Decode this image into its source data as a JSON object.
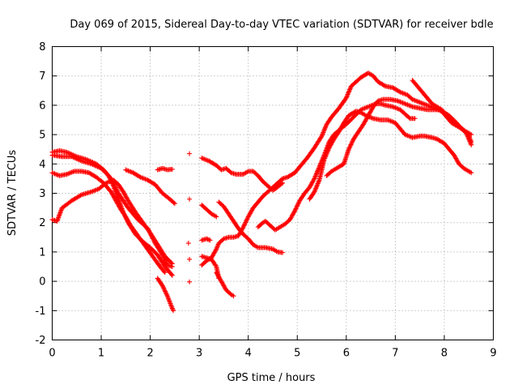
{
  "chart_data": {
    "type": "scatter",
    "title": "Day 069 of 2015, Sidereal Day-to-day VTEC variation (SDTVAR) for receiver bdle",
    "xlabel": "GPS time / hours",
    "ylabel": "SDTVAR / TECUs",
    "xlim": [
      0,
      9
    ],
    "ylim": [
      -2,
      8
    ],
    "xticks": [
      "0",
      "1",
      "2",
      "3",
      "4",
      "5",
      "6",
      "7",
      "8",
      "9"
    ],
    "yticks": [
      "-2",
      "-1",
      "0",
      "1",
      "2",
      "3",
      "4",
      "5",
      "6",
      "7",
      "8"
    ],
    "grid": true,
    "marker": "+",
    "color": "#ff0000",
    "tracks": [
      {
        "points": [
          [
            0.0,
            4.4
          ],
          [
            0.15,
            4.45
          ],
          [
            0.3,
            4.4
          ],
          [
            0.5,
            4.25
          ],
          [
            0.7,
            4.15
          ],
          [
            0.9,
            4.0
          ],
          [
            1.05,
            3.8
          ],
          [
            1.2,
            3.5
          ],
          [
            1.35,
            3.0
          ],
          [
            1.55,
            2.5
          ],
          [
            1.75,
            2.1
          ],
          [
            1.95,
            1.8
          ],
          [
            2.1,
            1.3
          ],
          [
            2.25,
            0.9
          ],
          [
            2.35,
            0.55
          ],
          [
            2.45,
            0.5
          ]
        ]
      },
      {
        "points": [
          [
            0.0,
            4.3
          ],
          [
            0.2,
            4.25
          ],
          [
            0.4,
            4.25
          ],
          [
            0.6,
            4.1
          ],
          [
            0.8,
            4.0
          ],
          [
            1.0,
            3.85
          ],
          [
            1.15,
            3.6
          ],
          [
            1.25,
            3.25
          ],
          [
            1.35,
            2.8
          ],
          [
            1.45,
            2.35
          ],
          [
            1.55,
            2.0
          ],
          [
            1.7,
            1.6
          ],
          [
            1.85,
            1.35
          ],
          [
            2.0,
            1.15
          ],
          [
            2.15,
            0.9
          ],
          [
            2.3,
            0.5
          ],
          [
            2.45,
            0.2
          ]
        ]
      },
      {
        "points": [
          [
            0.0,
            2.1
          ],
          [
            0.1,
            2.05
          ],
          [
            0.2,
            2.5
          ],
          [
            0.4,
            2.75
          ],
          [
            0.6,
            2.95
          ],
          [
            0.8,
            3.05
          ],
          [
            0.95,
            3.15
          ],
          [
            1.1,
            3.35
          ],
          [
            1.25,
            3.45
          ],
          [
            1.35,
            3.3
          ],
          [
            1.45,
            3.05
          ],
          [
            1.55,
            2.75
          ],
          [
            1.7,
            2.35
          ],
          [
            1.85,
            2.0
          ],
          [
            2.0,
            1.65
          ],
          [
            2.15,
            1.25
          ],
          [
            2.3,
            0.85
          ],
          [
            2.45,
            0.6
          ]
        ]
      },
      {
        "points": [
          [
            0.0,
            3.7
          ],
          [
            0.15,
            3.6
          ],
          [
            0.3,
            3.65
          ],
          [
            0.45,
            3.75
          ],
          [
            0.6,
            3.75
          ],
          [
            0.75,
            3.7
          ],
          [
            0.9,
            3.55
          ],
          [
            1.05,
            3.35
          ],
          [
            1.2,
            3.05
          ],
          [
            1.3,
            2.75
          ],
          [
            1.4,
            2.45
          ],
          [
            1.5,
            2.2
          ],
          [
            1.6,
            1.9
          ],
          [
            1.75,
            1.55
          ],
          [
            1.9,
            1.2
          ],
          [
            2.05,
            0.85
          ],
          [
            2.2,
            0.5
          ],
          [
            2.3,
            0.3
          ]
        ]
      },
      {
        "points": [
          [
            1.5,
            3.8
          ],
          [
            1.65,
            3.7
          ],
          [
            1.8,
            3.55
          ],
          [
            1.95,
            3.45
          ],
          [
            2.1,
            3.3
          ],
          [
            2.25,
            3.0
          ],
          [
            2.4,
            2.8
          ],
          [
            2.5,
            2.65
          ]
        ]
      },
      {
        "points": [
          [
            2.15,
            3.8
          ],
          [
            2.25,
            3.85
          ],
          [
            2.35,
            3.8
          ],
          [
            2.45,
            3.82
          ]
        ]
      },
      {
        "points": [
          [
            2.15,
            0.1
          ],
          [
            2.25,
            -0.15
          ],
          [
            2.35,
            -0.5
          ],
          [
            2.42,
            -0.8
          ],
          [
            2.47,
            -1.0
          ]
        ]
      },
      {
        "points": [
          [
            2.8,
            4.35
          ]
        ]
      },
      {
        "points": [
          [
            2.8,
            2.8
          ]
        ]
      },
      {
        "points": [
          [
            2.78,
            1.3
          ]
        ]
      },
      {
        "points": [
          [
            2.8,
            0.75
          ]
        ]
      },
      {
        "points": [
          [
            2.8,
            -0.02
          ]
        ]
      },
      {
        "points": [
          [
            3.05,
            4.2
          ],
          [
            3.2,
            4.1
          ],
          [
            3.35,
            3.95
          ],
          [
            3.45,
            3.8
          ],
          [
            3.55,
            3.85
          ],
          [
            3.65,
            3.7
          ],
          [
            3.75,
            3.65
          ],
          [
            3.9,
            3.65
          ],
          [
            4.0,
            3.75
          ],
          [
            4.1,
            3.75
          ],
          [
            4.2,
            3.6
          ],
          [
            4.3,
            3.4
          ],
          [
            4.4,
            3.25
          ],
          [
            4.5,
            3.1
          ],
          [
            4.55,
            3.15
          ],
          [
            4.7,
            3.35
          ]
        ]
      },
      {
        "points": [
          [
            3.05,
            2.6
          ],
          [
            3.15,
            2.45
          ],
          [
            3.25,
            2.3
          ],
          [
            3.35,
            2.2
          ]
        ]
      },
      {
        "points": [
          [
            3.05,
            1.4
          ],
          [
            3.15,
            1.45
          ],
          [
            3.22,
            1.4
          ]
        ]
      },
      {
        "points": [
          [
            3.05,
            0.85
          ],
          [
            3.15,
            0.8
          ],
          [
            3.25,
            0.75
          ],
          [
            3.35,
            0.5
          ],
          [
            3.4,
            0.1
          ]
        ]
      },
      {
        "points": [
          [
            3.05,
            0.55
          ],
          [
            3.15,
            0.7
          ],
          [
            3.25,
            0.8
          ],
          [
            3.35,
            1.1
          ],
          [
            3.4,
            1.3
          ],
          [
            3.5,
            1.45
          ],
          [
            3.6,
            1.5
          ],
          [
            3.7,
            1.5
          ],
          [
            3.8,
            1.55
          ],
          [
            3.9,
            1.85
          ],
          [
            4.0,
            2.2
          ],
          [
            4.1,
            2.5
          ],
          [
            4.2,
            2.7
          ],
          [
            4.3,
            2.9
          ],
          [
            4.4,
            3.05
          ],
          [
            4.5,
            3.2
          ],
          [
            4.6,
            3.35
          ],
          [
            4.7,
            3.5
          ],
          [
            4.8,
            3.55
          ],
          [
            4.95,
            3.7
          ],
          [
            5.05,
            3.9
          ],
          [
            5.2,
            4.2
          ],
          [
            5.35,
            4.55
          ],
          [
            5.5,
            4.95
          ],
          [
            5.6,
            5.35
          ],
          [
            5.7,
            5.6
          ],
          [
            5.85,
            5.9
          ],
          [
            6.0,
            6.25
          ],
          [
            6.1,
            6.65
          ],
          [
            6.2,
            6.8
          ],
          [
            6.3,
            6.95
          ],
          [
            6.45,
            7.1
          ],
          [
            6.55,
            7.0
          ],
          [
            6.65,
            6.8
          ],
          [
            6.8,
            6.65
          ],
          [
            6.95,
            6.6
          ],
          [
            7.1,
            6.45
          ],
          [
            7.25,
            6.35
          ],
          [
            7.35,
            6.2
          ],
          [
            7.5,
            6.1
          ],
          [
            7.65,
            6.0
          ],
          [
            7.8,
            5.9
          ],
          [
            7.95,
            5.8
          ],
          [
            8.1,
            5.65
          ],
          [
            8.25,
            5.4
          ],
          [
            8.35,
            5.2
          ],
          [
            8.45,
            5.1
          ],
          [
            8.55,
            5.0
          ]
        ]
      },
      {
        "points": [
          [
            3.4,
            2.7
          ],
          [
            3.5,
            2.55
          ],
          [
            3.6,
            2.3
          ],
          [
            3.7,
            2.05
          ],
          [
            3.8,
            1.8
          ],
          [
            3.9,
            1.6
          ],
          [
            4.0,
            1.45
          ],
          [
            4.1,
            1.25
          ],
          [
            4.2,
            1.15
          ],
          [
            4.35,
            1.15
          ],
          [
            4.5,
            1.1
          ],
          [
            4.6,
            1.0
          ],
          [
            4.7,
            0.98
          ]
        ]
      },
      {
        "points": [
          [
            3.35,
            0.3
          ],
          [
            3.45,
            0.0
          ],
          [
            3.55,
            -0.3
          ],
          [
            3.65,
            -0.45
          ],
          [
            3.7,
            -0.5
          ]
        ]
      },
      {
        "points": [
          [
            4.2,
            1.85
          ],
          [
            4.3,
            2.0
          ],
          [
            4.35,
            2.05
          ],
          [
            4.45,
            1.9
          ],
          [
            4.55,
            1.75
          ],
          [
            4.65,
            1.85
          ],
          [
            4.75,
            1.95
          ],
          [
            4.85,
            2.1
          ],
          [
            4.95,
            2.4
          ],
          [
            5.05,
            2.75
          ],
          [
            5.15,
            3.0
          ],
          [
            5.25,
            3.2
          ],
          [
            5.35,
            3.5
          ],
          [
            5.45,
            3.9
          ],
          [
            5.55,
            4.3
          ],
          [
            5.65,
            4.75
          ],
          [
            5.75,
            5.0
          ],
          [
            5.85,
            5.15
          ],
          [
            6.0,
            5.35
          ],
          [
            6.15,
            5.6
          ],
          [
            6.3,
            5.85
          ],
          [
            6.45,
            5.95
          ],
          [
            6.6,
            6.05
          ],
          [
            6.7,
            6.05
          ],
          [
            6.8,
            6.0
          ],
          [
            6.95,
            5.95
          ],
          [
            7.1,
            5.85
          ],
          [
            7.2,
            5.7
          ],
          [
            7.3,
            5.55
          ],
          [
            7.4,
            5.55
          ]
        ]
      },
      {
        "points": [
          [
            5.25,
            2.8
          ],
          [
            5.35,
            3.05
          ],
          [
            5.45,
            3.45
          ],
          [
            5.5,
            3.8
          ],
          [
            5.55,
            4.15
          ],
          [
            5.65,
            4.55
          ],
          [
            5.75,
            4.85
          ],
          [
            5.85,
            5.1
          ],
          [
            5.95,
            5.4
          ],
          [
            6.05,
            5.65
          ],
          [
            6.2,
            5.8
          ],
          [
            6.3,
            5.75
          ],
          [
            6.4,
            5.65
          ],
          [
            6.55,
            5.55
          ],
          [
            6.7,
            5.5
          ],
          [
            6.85,
            5.5
          ],
          [
            7.0,
            5.4
          ],
          [
            7.1,
            5.2
          ],
          [
            7.2,
            5.0
          ],
          [
            7.35,
            4.9
          ],
          [
            7.5,
            4.95
          ],
          [
            7.6,
            4.95
          ],
          [
            7.75,
            4.9
          ],
          [
            7.85,
            4.85
          ],
          [
            8.0,
            4.7
          ],
          [
            8.1,
            4.5
          ],
          [
            8.2,
            4.3
          ],
          [
            8.3,
            4.0
          ],
          [
            8.4,
            3.85
          ],
          [
            8.5,
            3.75
          ],
          [
            8.55,
            3.7
          ]
        ]
      },
      {
        "points": [
          [
            5.6,
            3.6
          ],
          [
            5.7,
            3.75
          ],
          [
            5.8,
            3.85
          ],
          [
            5.95,
            4.0
          ],
          [
            6.05,
            4.5
          ],
          [
            6.15,
            4.85
          ],
          [
            6.25,
            5.1
          ],
          [
            6.35,
            5.35
          ],
          [
            6.45,
            5.65
          ],
          [
            6.55,
            5.95
          ],
          [
            6.65,
            6.15
          ],
          [
            6.75,
            6.2
          ],
          [
            6.9,
            6.2
          ],
          [
            7.05,
            6.15
          ],
          [
            7.2,
            6.05
          ],
          [
            7.35,
            5.95
          ],
          [
            7.5,
            5.9
          ],
          [
            7.65,
            5.85
          ],
          [
            7.8,
            5.85
          ],
          [
            7.9,
            5.85
          ],
          [
            8.0,
            5.7
          ],
          [
            8.1,
            5.5
          ],
          [
            8.2,
            5.35
          ],
          [
            8.3,
            5.3
          ],
          [
            8.4,
            5.15
          ],
          [
            8.5,
            4.95
          ],
          [
            8.55,
            4.75
          ]
        ]
      },
      {
        "points": [
          [
            7.35,
            6.85
          ],
          [
            7.45,
            6.65
          ],
          [
            7.55,
            6.45
          ],
          [
            7.65,
            6.25
          ],
          [
            7.75,
            6.05
          ],
          [
            7.85,
            5.95
          ],
          [
            7.95,
            5.85
          ],
          [
            8.05,
            5.6
          ],
          [
            8.15,
            5.4
          ],
          [
            8.25,
            5.3
          ],
          [
            8.35,
            5.2
          ],
          [
            8.45,
            5.05
          ],
          [
            8.55,
            4.65
          ]
        ]
      }
    ]
  }
}
